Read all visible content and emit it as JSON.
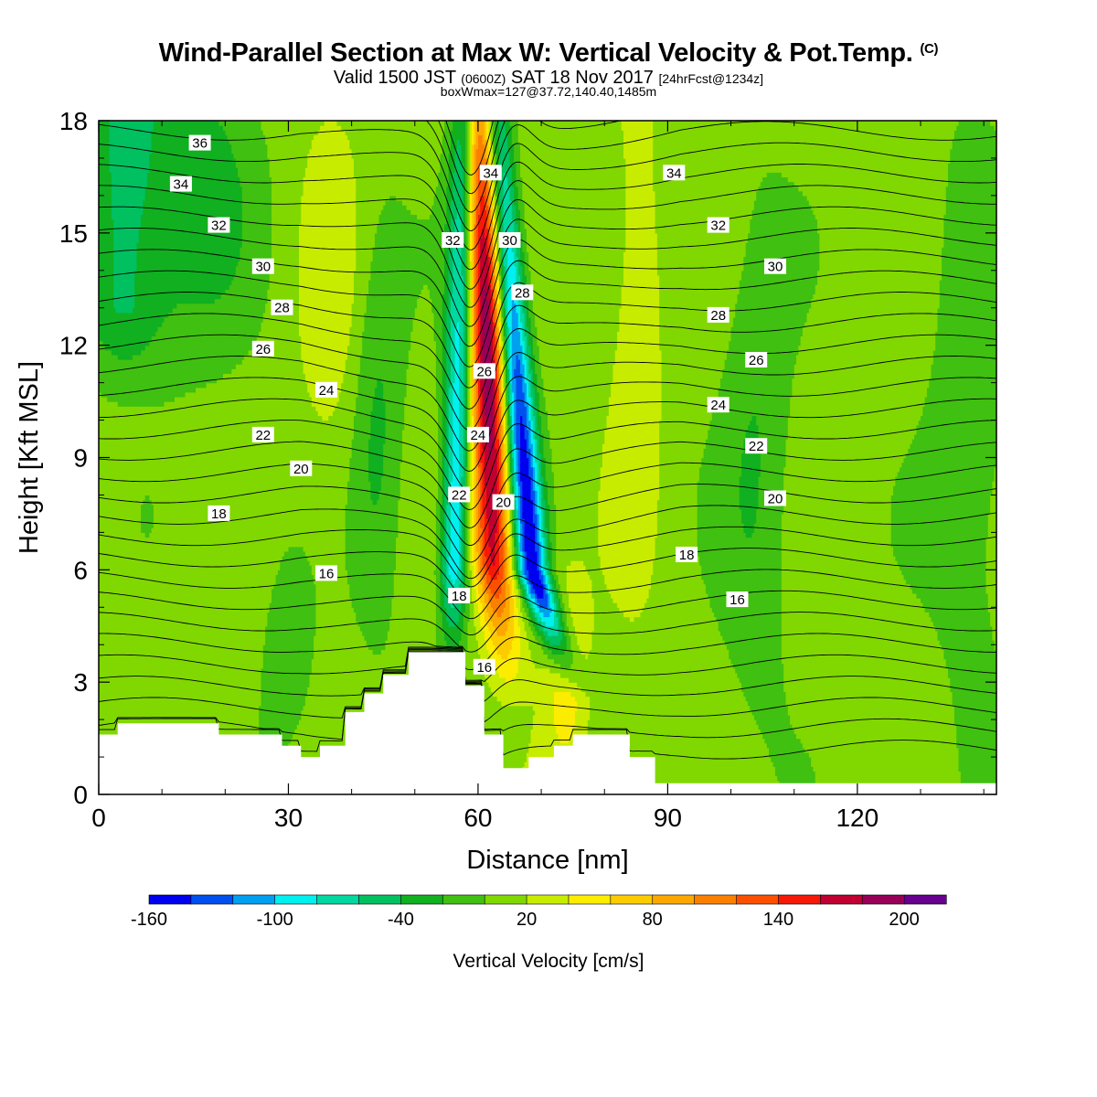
{
  "title": {
    "main": "Wind-Parallel Section at Max W: Vertical Velocity & Pot.Temp.",
    "copyright": "(C)",
    "valid_prefix": "Valid 1500 JST",
    "valid_utc": "(0600Z)",
    "valid_date": "SAT 18 Nov 2017",
    "fcst": "[24hrFcst@1234z]",
    "boxw": "boxWmax=127@37.72,140.40,1485m"
  },
  "chart_data": {
    "type": "contour",
    "xlabel": "Distance [nm]",
    "ylabel": "Height [Kft MSL]",
    "xlim": [
      0,
      142
    ],
    "ylim": [
      0,
      18
    ],
    "xticks": [
      0,
      30,
      60,
      90,
      120
    ],
    "yticks": [
      0,
      3,
      6,
      9,
      12,
      15,
      18
    ],
    "colorbar": {
      "label": "Vertical Velocity [cm/s]",
      "levels": [
        -160,
        -140,
        -120,
        -100,
        -80,
        -60,
        -40,
        -20,
        0,
        20,
        40,
        60,
        80,
        100,
        120,
        140,
        160,
        180,
        200
      ],
      "tick_labels": [
        -160,
        -100,
        -40,
        20,
        80,
        140,
        200
      ],
      "colors": [
        "#0000f0",
        "#0050f0",
        "#00a0f0",
        "#00f0f0",
        "#00d8a0",
        "#00c060",
        "#10b020",
        "#40c010",
        "#80d800",
        "#c8ec00",
        "#fcec00",
        "#fccc00",
        "#fca800",
        "#fc8000",
        "#fc5000",
        "#f81808",
        "#c00030",
        "#980058",
        "#680090"
      ]
    },
    "potential_temperature_labels": [
      16,
      18,
      20,
      22,
      24,
      26,
      28,
      30,
      32,
      34,
      36
    ],
    "contour_label_positions": [
      {
        "value": 36,
        "x": 16,
        "y": 17.4
      },
      {
        "value": 34,
        "x": 13,
        "y": 16.3
      },
      {
        "value": 32,
        "x": 19,
        "y": 15.2
      },
      {
        "value": 30,
        "x": 26,
        "y": 14.1
      },
      {
        "value": 28,
        "x": 29,
        "y": 13.0
      },
      {
        "value": 26,
        "x": 26,
        "y": 11.9
      },
      {
        "value": 24,
        "x": 36,
        "y": 10.8
      },
      {
        "value": 22,
        "x": 26,
        "y": 9.6
      },
      {
        "value": 20,
        "x": 32,
        "y": 8.7
      },
      {
        "value": 18,
        "x": 19,
        "y": 7.5
      },
      {
        "value": 16,
        "x": 36,
        "y": 5.9
      },
      {
        "value": 34,
        "x": 62,
        "y": 16.6
      },
      {
        "value": 32,
        "x": 56,
        "y": 14.8
      },
      {
        "value": 30,
        "x": 65,
        "y": 14.8
      },
      {
        "value": 28,
        "x": 67,
        "y": 13.4
      },
      {
        "value": 26,
        "x": 61,
        "y": 11.3
      },
      {
        "value": 24,
        "x": 60,
        "y": 9.6
      },
      {
        "value": 22,
        "x": 57,
        "y": 8.0
      },
      {
        "value": 20,
        "x": 64,
        "y": 7.8
      },
      {
        "value": 18,
        "x": 57,
        "y": 5.3
      },
      {
        "value": 16,
        "x": 61,
        "y": 3.4
      },
      {
        "value": 34,
        "x": 91,
        "y": 16.6
      },
      {
        "value": 32,
        "x": 98,
        "y": 15.2
      },
      {
        "value": 30,
        "x": 107,
        "y": 14.1
      },
      {
        "value": 28,
        "x": 98,
        "y": 12.8
      },
      {
        "value": 26,
        "x": 104,
        "y": 11.6
      },
      {
        "value": 24,
        "x": 98,
        "y": 10.4
      },
      {
        "value": 22,
        "x": 104,
        "y": 9.3
      },
      {
        "value": 20,
        "x": 107,
        "y": 7.9
      },
      {
        "value": 18,
        "x": 93,
        "y": 6.4
      },
      {
        "value": 16,
        "x": 101,
        "y": 5.2
      }
    ],
    "terrain_profile": [
      {
        "x": 0,
        "y": 1.6
      },
      {
        "x": 3,
        "y": 1.9
      },
      {
        "x": 19,
        "y": 1.6
      },
      {
        "x": 29,
        "y": 1.3
      },
      {
        "x": 32,
        "y": 1.0
      },
      {
        "x": 35,
        "y": 1.3
      },
      {
        "x": 39,
        "y": 2.2
      },
      {
        "x": 42,
        "y": 2.7
      },
      {
        "x": 45,
        "y": 3.2
      },
      {
        "x": 49,
        "y": 3.8
      },
      {
        "x": 58,
        "y": 2.9
      },
      {
        "x": 61,
        "y": 1.6
      },
      {
        "x": 64,
        "y": 0.7
      },
      {
        "x": 68,
        "y": 1.0
      },
      {
        "x": 72,
        "y": 1.3
      },
      {
        "x": 75,
        "y": 1.6
      },
      {
        "x": 84,
        "y": 1.0
      },
      {
        "x": 88,
        "y": 0.3
      },
      {
        "x": 142,
        "y": 0.3
      }
    ]
  }
}
